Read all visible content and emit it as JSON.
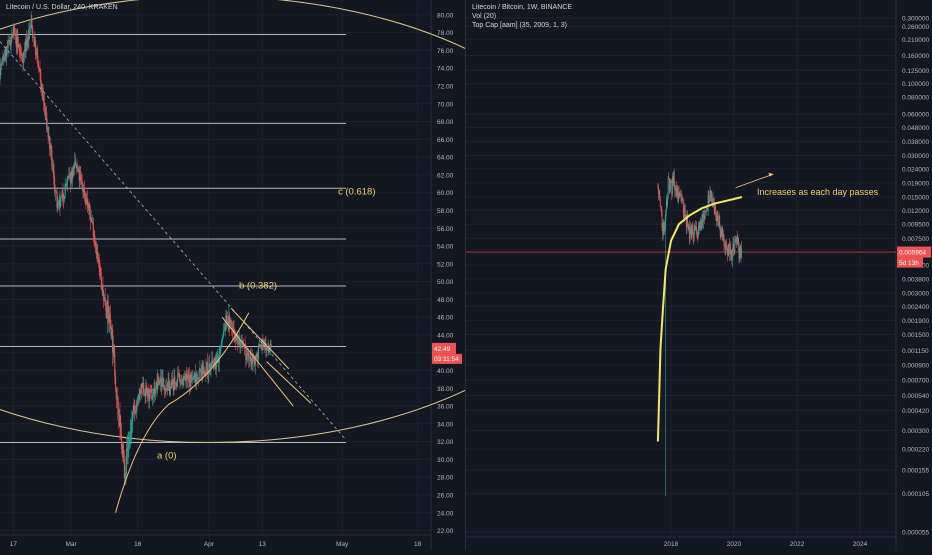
{
  "colors": {
    "background": "#131722",
    "grid": "#1e222d",
    "axis_text": "#b2b5be",
    "candle_up": "#26a69a",
    "candle_down": "#ef5350",
    "level_line": "#d1d4dc",
    "fib_circle": "#d9c68a",
    "channel": "#f0c27a",
    "annotation_text": "#f4d06a",
    "price_tag_bg": "#ef5350",
    "price_line_right": "#c43a3a",
    "yellow_curve": "#f5e663",
    "arrow": "#f0c27a"
  },
  "chart_data": [
    {
      "type": "candlestick",
      "title": "Litecoin / U.S. Dollar, 240, KRAKEN",
      "symbol": "Litecoin / U.S. Dollar",
      "interval": "240",
      "exchange": "KRAKEN",
      "x_tick_labels": [
        "17",
        "Mar",
        "16",
        "Apr",
        "13",
        "May",
        "18"
      ],
      "y_tick_labels": [
        "80.00",
        "78.00",
        "76.00",
        "74.00",
        "72.00",
        "70.00",
        "68.00",
        "66.00",
        "64.00",
        "62.00",
        "60.00",
        "58.00",
        "56.00",
        "54.00",
        "52.00",
        "50.00",
        "48.00",
        "46.00",
        "44.00",
        "42.00",
        "40.00",
        "38.00",
        "36.00",
        "34.00",
        "32.00",
        "30.00",
        "28.00",
        "26.00",
        "24.00",
        "22.00"
      ],
      "ylim": [
        21.5,
        81
      ],
      "grid": true,
      "last_price": "42.49",
      "countdown": "03:11:54",
      "horizontal_levels": [
        77.8,
        67.8,
        60.5,
        54.8,
        49.5,
        42.7,
        31.9
      ],
      "annotations": [
        "c (0.618)",
        "b (0.382)",
        "a (0)"
      ],
      "approx_close_path": [
        {
          "x": "Feb 14",
          "y": 74
        },
        {
          "x": "Feb 17",
          "y": 78
        },
        {
          "x": "Feb 19",
          "y": 75
        },
        {
          "x": "Feb 21",
          "y": 79
        },
        {
          "x": "Feb 23",
          "y": 73
        },
        {
          "x": "Feb 25",
          "y": 66
        },
        {
          "x": "Feb 27",
          "y": 58
        },
        {
          "x": "Feb 29",
          "y": 61
        },
        {
          "x": "Mar 2",
          "y": 63
        },
        {
          "x": "Mar 4",
          "y": 60
        },
        {
          "x": "Mar 6",
          "y": 56
        },
        {
          "x": "Mar 8",
          "y": 49
        },
        {
          "x": "Mar 10",
          "y": 45
        },
        {
          "x": "Mar 12",
          "y": 33
        },
        {
          "x": "Mar 13",
          "y": 29
        },
        {
          "x": "Mar 15",
          "y": 35
        },
        {
          "x": "Mar 17",
          "y": 38
        },
        {
          "x": "Mar 19",
          "y": 37
        },
        {
          "x": "Mar 21",
          "y": 39
        },
        {
          "x": "Mar 23",
          "y": 38
        },
        {
          "x": "Mar 25",
          "y": 39
        },
        {
          "x": "Mar 28",
          "y": 39
        },
        {
          "x": "Mar 31",
          "y": 40
        },
        {
          "x": "Apr 3",
          "y": 41
        },
        {
          "x": "Apr 5",
          "y": 46
        },
        {
          "x": "Apr 7",
          "y": 44
        },
        {
          "x": "Apr 9",
          "y": 42
        },
        {
          "x": "Apr 11",
          "y": 41
        },
        {
          "x": "Apr 13",
          "y": 43
        },
        {
          "x": "Apr 15",
          "y": 42.5
        }
      ]
    },
    {
      "type": "candlestick",
      "title": "Litecoin / Bitcoin, 1W, BINANCE",
      "symbol": "Litecoin / Bitcoin",
      "interval": "1W",
      "exchange": "BINANCE",
      "indicators": [
        "Vol (20)",
        "Top Cap [aam] (35, 2009, 1, 3)"
      ],
      "x_tick_labels": [
        "2018",
        "2020",
        "2022",
        "2024"
      ],
      "y_tick_labels": [
        "0.300000",
        "0.260000",
        "0.210000",
        "0.160000",
        "0.125000",
        "0.100000",
        "0.080000",
        "0.060000",
        "0.048000",
        "0.038000",
        "0.030000",
        "0.024000",
        "0.019000",
        "0.015000",
        "0.012000",
        "0.009500",
        "0.007500",
        "0.005964",
        "0.004800",
        "0.003800",
        "0.003000",
        "0.002400",
        "0.001900",
        "0.001500",
        "0.001150",
        "0.000900",
        "0.000700",
        "0.000540",
        "0.000420",
        "0.000300",
        "0.000220",
        "0.000155",
        "0.000105",
        "0.000055"
      ],
      "y_scale": "log",
      "grid": true,
      "last_price": "0.005964",
      "countdown": "5d 13h",
      "annotations": [
        "Increases as each day passes"
      ],
      "approx_close_path": [
        {
          "x": "2017-08",
          "y": 0.018
        },
        {
          "x": "2017-09",
          "y": 0.012
        },
        {
          "x": "2017-10",
          "y": 0.0085
        },
        {
          "x": "2017-11",
          "y": 0.011
        },
        {
          "x": "2017-12",
          "y": 0.02
        },
        {
          "x": "2018-01",
          "y": 0.017
        },
        {
          "x": "2018-02",
          "y": 0.021
        },
        {
          "x": "2018-03",
          "y": 0.017
        },
        {
          "x": "2018-05",
          "y": 0.014
        },
        {
          "x": "2018-08",
          "y": 0.0085
        },
        {
          "x": "2018-11",
          "y": 0.008
        },
        {
          "x": "2019-02",
          "y": 0.012
        },
        {
          "x": "2019-04",
          "y": 0.015
        },
        {
          "x": "2019-06",
          "y": 0.012
        },
        {
          "x": "2019-08",
          "y": 0.0085
        },
        {
          "x": "2019-10",
          "y": 0.0068
        },
        {
          "x": "2019-12",
          "y": 0.0058
        },
        {
          "x": "2020-02",
          "y": 0.0075
        },
        {
          "x": "2020-03",
          "y": 0.006
        },
        {
          "x": "2020-04",
          "y": 0.0059
        }
      ],
      "top_cap_path": [
        {
          "x": "2017-08",
          "y": 0.00025
        },
        {
          "x": "2017-09",
          "y": 0.0012
        },
        {
          "x": "2017-10",
          "y": 0.0024
        },
        {
          "x": "2017-11",
          "y": 0.0045
        },
        {
          "x": "2018-01",
          "y": 0.0072
        },
        {
          "x": "2018-04",
          "y": 0.0095
        },
        {
          "x": "2018-08",
          "y": 0.011
        },
        {
          "x": "2019-01",
          "y": 0.0125
        },
        {
          "x": "2019-06",
          "y": 0.0135
        },
        {
          "x": "2020-01",
          "y": 0.0145
        },
        {
          "x": "2020-04",
          "y": 0.015
        }
      ]
    }
  ]
}
